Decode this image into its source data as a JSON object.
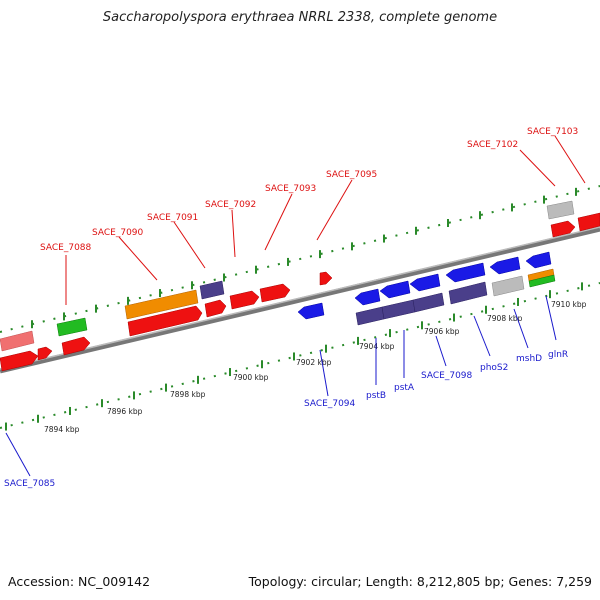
{
  "title": "Saccharopolyspora erythraea NRRL 2338, complete genome",
  "footer": {
    "accession": "Accession: NC_009142",
    "topology": "Topology: circular; Length: 8,212,805 bp; Genes: 7,259"
  },
  "colors": {
    "backbone": "#888888",
    "tick": "#2a8a2a",
    "forward_label": "#dd1111",
    "reverse_label": "#1a1acc",
    "red": "#ee1111",
    "blue": "#1a1ae6",
    "purple": "#4a3f8a",
    "orange": "#f08c00",
    "green": "#22bb22",
    "gray": "#bbbbbb",
    "pink": "#f07070"
  },
  "scale_labels": [
    "7894 kbp",
    "7896 kbp",
    "7898 kbp",
    "7900 kbp",
    "7902 kbp",
    "7904 kbp",
    "7906 kbp",
    "7908 kbp",
    "7910 kbp"
  ],
  "forward_gene_labels": [
    "SACE_7088",
    "SACE_7090",
    "SACE_7091",
    "SACE_7092",
    "SACE_7093",
    "SACE_7095",
    "SACE_7102",
    "SACE_7103"
  ],
  "reverse_gene_labels": [
    "SACE_7085",
    "SACE_7094",
    "pstB",
    "pstA",
    "SACE_7098",
    "phoS2",
    "mshD",
    "glnR"
  ]
}
